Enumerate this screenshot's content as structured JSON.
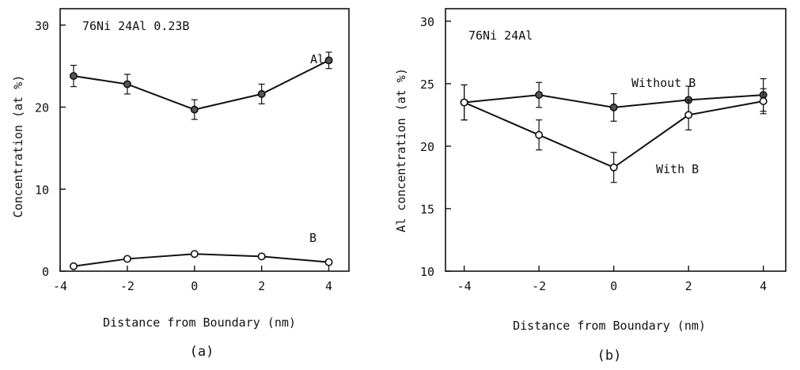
{
  "chart_data": [
    {
      "type": "line",
      "panel_label": "(a)",
      "annotation": "76Ni 24Al 0.23B",
      "xlabel": "Distance from Boundary (nm)",
      "ylabel": "Concentration (at %)",
      "xlim": [
        -4,
        4.6
      ],
      "ylim": [
        0,
        32
      ],
      "xticks": [
        -4,
        -2,
        0,
        2,
        4
      ],
      "yticks": [
        0,
        10,
        20,
        30
      ],
      "grid": false,
      "series": [
        {
          "name": "Al",
          "marker": "filled-circle",
          "x": [
            -3.6,
            -2,
            0,
            2,
            4
          ],
          "y": [
            23.8,
            22.8,
            19.7,
            21.6,
            25.7
          ],
          "err": [
            1.3,
            1.2,
            1.2,
            1.2,
            1.0
          ]
        },
        {
          "name": "B",
          "marker": "open-circle",
          "x": [
            -3.6,
            -2,
            0,
            2,
            4
          ],
          "y": [
            0.6,
            1.5,
            2.1,
            1.8,
            1.1
          ],
          "err": [
            0,
            0,
            0,
            0,
            0
          ]
        }
      ]
    },
    {
      "type": "line",
      "panel_label": "(b)",
      "annotation": "76Ni 24Al",
      "xlabel": "Distance from Boundary (nm)",
      "ylabel": "Al concentration (at %)",
      "xlim": [
        -4.5,
        4.6
      ],
      "ylim": [
        10,
        31
      ],
      "xticks": [
        -4,
        -2,
        0,
        2,
        4
      ],
      "yticks": [
        10,
        15,
        20,
        25,
        30
      ],
      "grid": false,
      "series": [
        {
          "name": "Without B",
          "marker": "filled-circle",
          "x": [
            -4,
            -2,
            0,
            2,
            4
          ],
          "y": [
            23.5,
            24.1,
            23.1,
            23.7,
            24.1
          ],
          "err": [
            1.4,
            1.0,
            1.1,
            1.1,
            1.3
          ]
        },
        {
          "name": "With B",
          "marker": "open-circle",
          "x": [
            -4,
            -2,
            0,
            2,
            4
          ],
          "y": [
            23.5,
            20.9,
            18.3,
            22.5,
            23.6
          ],
          "err": [
            1.4,
            1.2,
            1.2,
            1.2,
            1.0
          ]
        }
      ]
    }
  ]
}
